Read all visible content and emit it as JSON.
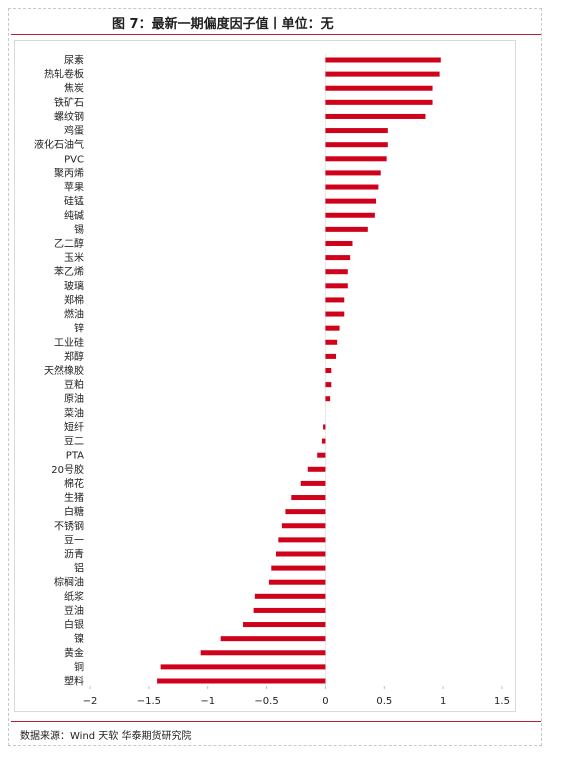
{
  "figure": {
    "title": "图 7：最新一期偏度因子值丨单位：无",
    "source": "数据来源：Wind 天软 华泰期货研究院"
  },
  "colors": {
    "bar": "#d0021b",
    "axis": "#bfbfbf",
    "frame_rule": "#b22234"
  },
  "chart_data": {
    "type": "bar",
    "orientation": "horizontal",
    "title": "图 7：最新一期偏度因子值丨单位：无",
    "xlabel": "",
    "ylabel": "",
    "xlim": [
      -2,
      1.5
    ],
    "xticks": [
      -2,
      -1.5,
      -1,
      -0.5,
      0,
      0.5,
      1,
      1.5
    ],
    "xtick_labels": [
      "−2",
      "−1.5",
      "−1",
      "−0.5",
      "0",
      "0.5",
      "1",
      "1.5"
    ],
    "grid": false,
    "legend": "none",
    "categories": [
      "尿素",
      "热轧卷板",
      "焦炭",
      "铁矿石",
      "螺纹钢",
      "鸡蛋",
      "液化石油气",
      "PVC",
      "聚丙烯",
      "苹果",
      "硅锰",
      "纯碱",
      "锡",
      "乙二醇",
      "玉米",
      "苯乙烯",
      "玻璃",
      "郑棉",
      "燃油",
      "锌",
      "工业硅",
      "郑醇",
      "天然橡胶",
      "豆粕",
      "原油",
      "菜油",
      "短纤",
      "豆二",
      "PTA",
      "20号胶",
      "棉花",
      "生猪",
      "白糖",
      "不锈钢",
      "豆一",
      "沥青",
      "铝",
      "棕榈油",
      "纸浆",
      "豆油",
      "白银",
      "镍",
      "黄金",
      "铜",
      "塑料"
    ],
    "values": [
      0.98,
      0.97,
      0.91,
      0.91,
      0.85,
      0.53,
      0.53,
      0.52,
      0.47,
      0.45,
      0.43,
      0.42,
      0.36,
      0.23,
      0.21,
      0.19,
      0.19,
      0.16,
      0.16,
      0.12,
      0.1,
      0.09,
      0.05,
      0.05,
      0.04,
      0.0,
      -0.02,
      -0.03,
      -0.07,
      -0.15,
      -0.21,
      -0.29,
      -0.34,
      -0.37,
      -0.4,
      -0.42,
      -0.46,
      -0.48,
      -0.6,
      -0.61,
      -0.7,
      -0.89,
      -1.06,
      -1.4,
      -1.43
    ]
  }
}
